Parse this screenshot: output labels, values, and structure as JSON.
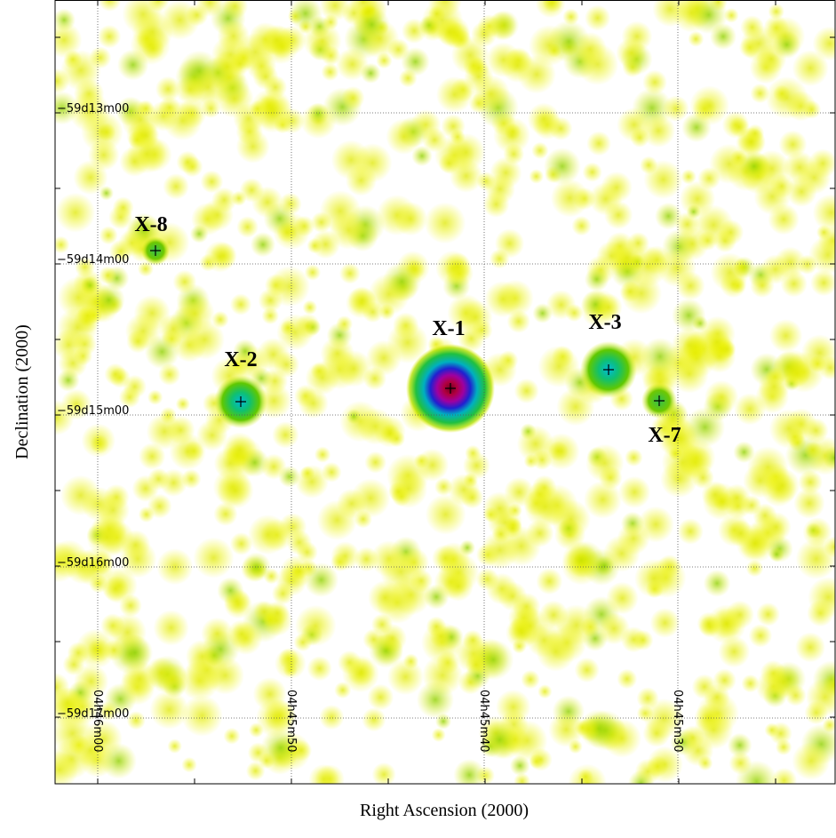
{
  "x_axis_label": "Right Ascension (2000)",
  "y_axis_label": "Declination (2000)",
  "dec_ticks": [
    "−59d13m00",
    "−59d14m00",
    "−59d15m00",
    "−59d16m00",
    "−59d17m00"
  ],
  "ra_ticks": [
    "04h46m00",
    "04h45m50",
    "04h45m40",
    "04h45m30"
  ],
  "sources": [
    {
      "label": "X-8"
    },
    {
      "label": "X-2"
    },
    {
      "label": "X-1"
    },
    {
      "label": "X-3"
    },
    {
      "label": "X-7"
    }
  ]
}
